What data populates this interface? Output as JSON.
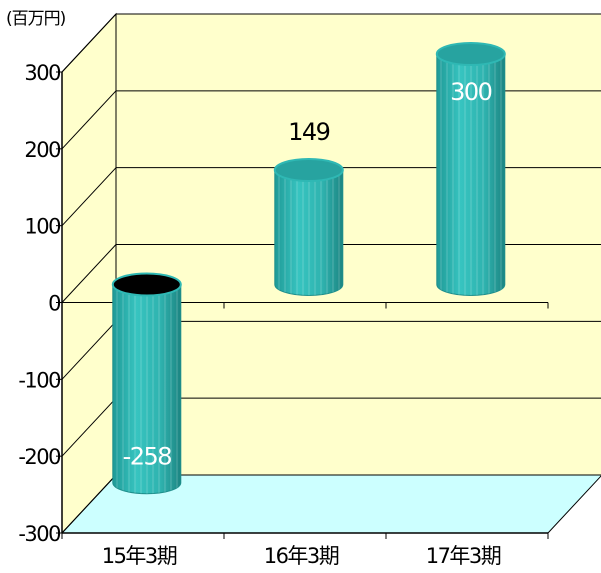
{
  "chart_data": {
    "type": "bar",
    "unit_label": "(百万円)",
    "categories": [
      "15年3期",
      "16年3期",
      "17年3期"
    ],
    "values": [
      -258,
      149,
      300
    ],
    "data_labels": [
      "-258",
      "149",
      "300"
    ],
    "ylim": [
      -300,
      300
    ],
    "yticks": [
      "300",
      "200",
      "100",
      "0",
      "-100",
      "-200",
      "-300"
    ],
    "grid": true,
    "colors": {
      "bar": "#2fb8b4",
      "bar_dark": "#1e8f8c",
      "bar_top": "#27a3a0",
      "negative_top": "#000000",
      "wall": "#ffffcc",
      "floor": "#ccffff",
      "line": "#000000"
    }
  }
}
